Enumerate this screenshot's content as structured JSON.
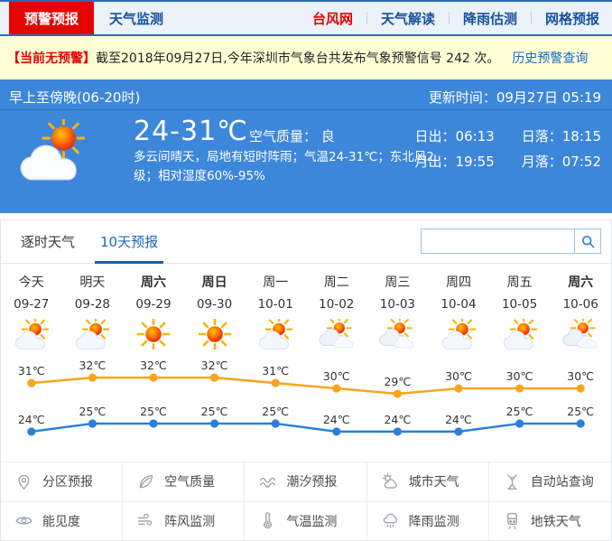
{
  "nav": {
    "left": [
      {
        "label": "预警预报",
        "active": true
      },
      {
        "label": "天气监测",
        "active": false
      }
    ],
    "right": [
      {
        "label": "台风网",
        "highlight": true
      },
      {
        "label": "天气解读",
        "highlight": false
      },
      {
        "label": "降雨估测",
        "highlight": false
      },
      {
        "label": "网格预报",
        "highlight": false
      }
    ]
  },
  "alert": {
    "badge": "【当前无预警】",
    "text": "截至2018年09月27日,今年深圳市气象台共发布气象预警信号 242 次。",
    "link": "历史预警查询"
  },
  "current": {
    "period": "早上至傍晚(06-20时)",
    "updated": "更新时间：09月27日 05:19",
    "temp_range": "24-31℃",
    "air_quality_label": "空气质量：",
    "air_quality_value": "良",
    "description": "多云间晴天，局地有短时阵雨；气温24-31℃；东北风2级；相对湿度60%-95%",
    "icon": "sun-cloud",
    "sun_moon": [
      "日出：06:13",
      "日落：18:15",
      "月出：19:55",
      "月落：07:52"
    ]
  },
  "tabs": [
    {
      "label": "逐时天气",
      "active": false
    },
    {
      "label": "10天预报",
      "active": true
    }
  ],
  "search": {
    "value": ""
  },
  "forecast": {
    "days": [
      {
        "name": "今天",
        "date": "09-27",
        "icon": "partly-cloudy",
        "bold": false
      },
      {
        "name": "明天",
        "date": "09-28",
        "icon": "partly-cloudy",
        "bold": false
      },
      {
        "name": "周六",
        "date": "09-29",
        "icon": "sunny",
        "bold": true
      },
      {
        "name": "周日",
        "date": "09-30",
        "icon": "sunny",
        "bold": true
      },
      {
        "name": "周一",
        "date": "10-01",
        "icon": "partly-cloudy",
        "bold": false
      },
      {
        "name": "周二",
        "date": "10-02",
        "icon": "cloudy",
        "bold": false
      },
      {
        "name": "周三",
        "date": "10-03",
        "icon": "cloudy",
        "bold": false
      },
      {
        "name": "周四",
        "date": "10-04",
        "icon": "partly-cloudy",
        "bold": false
      },
      {
        "name": "周五",
        "date": "10-05",
        "icon": "partly-cloudy",
        "bold": false
      },
      {
        "name": "周六",
        "date": "10-06",
        "icon": "cloudy",
        "bold": true
      }
    ]
  },
  "chart_data": {
    "type": "line",
    "categories": [
      "09-27",
      "09-28",
      "09-29",
      "09-30",
      "10-01",
      "10-02",
      "10-03",
      "10-04",
      "10-05",
      "10-06"
    ],
    "series": [
      {
        "name": "high",
        "unit": "℃",
        "color": "#f8a41d",
        "values": [
          31,
          32,
          32,
          32,
          31,
          30,
          29,
          30,
          30,
          30
        ]
      },
      {
        "name": "low",
        "unit": "℃",
        "color": "#2b7fd8",
        "values": [
          24,
          25,
          25,
          25,
          25,
          24,
          24,
          24,
          25,
          25
        ]
      }
    ],
    "point_labels": true,
    "grid": false,
    "legend": "none"
  },
  "quick_links": {
    "rows": [
      [
        {
          "key": "district-forecast",
          "icon": "map-pin",
          "label": "分区预报"
        },
        {
          "key": "air-quality",
          "icon": "leaf",
          "label": "空气质量"
        },
        {
          "key": "tide-forecast",
          "icon": "wave",
          "label": "潮汐预报"
        },
        {
          "key": "city-weather",
          "icon": "sun-cloud",
          "label": "城市天气"
        },
        {
          "key": "auto-station-query",
          "icon": "station",
          "label": "自动站查询"
        }
      ],
      [
        {
          "key": "visibility",
          "icon": "eye",
          "label": "能见度"
        },
        {
          "key": "gust-monitor",
          "icon": "wind",
          "label": "阵风监测"
        },
        {
          "key": "temperature-monitor",
          "icon": "thermometer",
          "label": "气温监测"
        },
        {
          "key": "rain-monitor",
          "icon": "rain-cloud",
          "label": "降雨监测"
        },
        {
          "key": "metro-weather",
          "icon": "train",
          "label": "地铁天气"
        }
      ]
    ]
  },
  "colors": {
    "accent_red": "#e50500",
    "nav_blue": "#17519e",
    "panel_blue": "#3d87db",
    "alert_bg": "#ffffd6",
    "tab_active": "#1f5ba8",
    "chart_high": "#f8a41d",
    "chart_low": "#2b7fd8"
  }
}
